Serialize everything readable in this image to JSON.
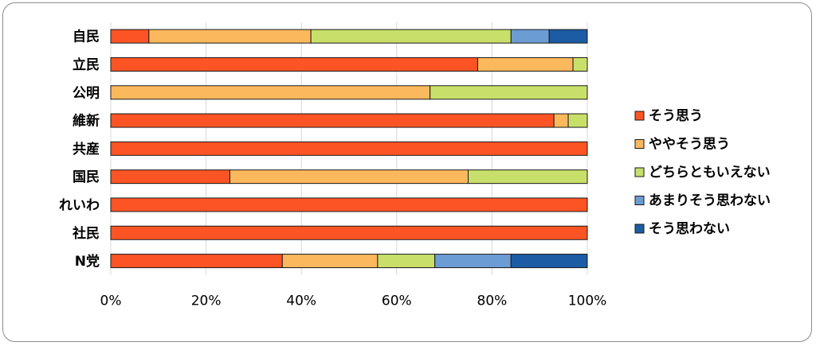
{
  "chart_data": {
    "type": "bar",
    "orientation": "horizontal",
    "stacked": "percent",
    "categories": [
      "自民",
      "立民",
      "公明",
      "維新",
      "共産",
      "国民",
      "れいわ",
      "社民",
      "N党"
    ],
    "series": [
      {
        "name": "そう思う",
        "color": "#fc5424",
        "values": [
          8,
          77,
          0,
          93,
          100,
          25,
          100,
          100,
          36
        ]
      },
      {
        "name": "ややそう思う",
        "color": "#fcb85c",
        "values": [
          34,
          20,
          67,
          3,
          0,
          50,
          0,
          0,
          20
        ]
      },
      {
        "name": "どちらともいえない",
        "color": "#c8e06a",
        "values": [
          42,
          3,
          33,
          4,
          0,
          25,
          0,
          0,
          12
        ]
      },
      {
        "name": "あまりそう思わない",
        "color": "#6c9cd4",
        "values": [
          8,
          0,
          0,
          0,
          0,
          0,
          0,
          0,
          16
        ]
      },
      {
        "name": "そう思わない",
        "color": "#1c5ca4",
        "values": [
          8,
          0,
          0,
          0,
          0,
          0,
          0,
          0,
          16
        ]
      }
    ],
    "xlim": [
      0,
      100
    ],
    "x_ticks": [
      "0%",
      "20%",
      "40%",
      "60%",
      "80%",
      "100%"
    ],
    "grid": true,
    "legend_position": "right",
    "title": "",
    "xlabel": "",
    "ylabel": ""
  }
}
